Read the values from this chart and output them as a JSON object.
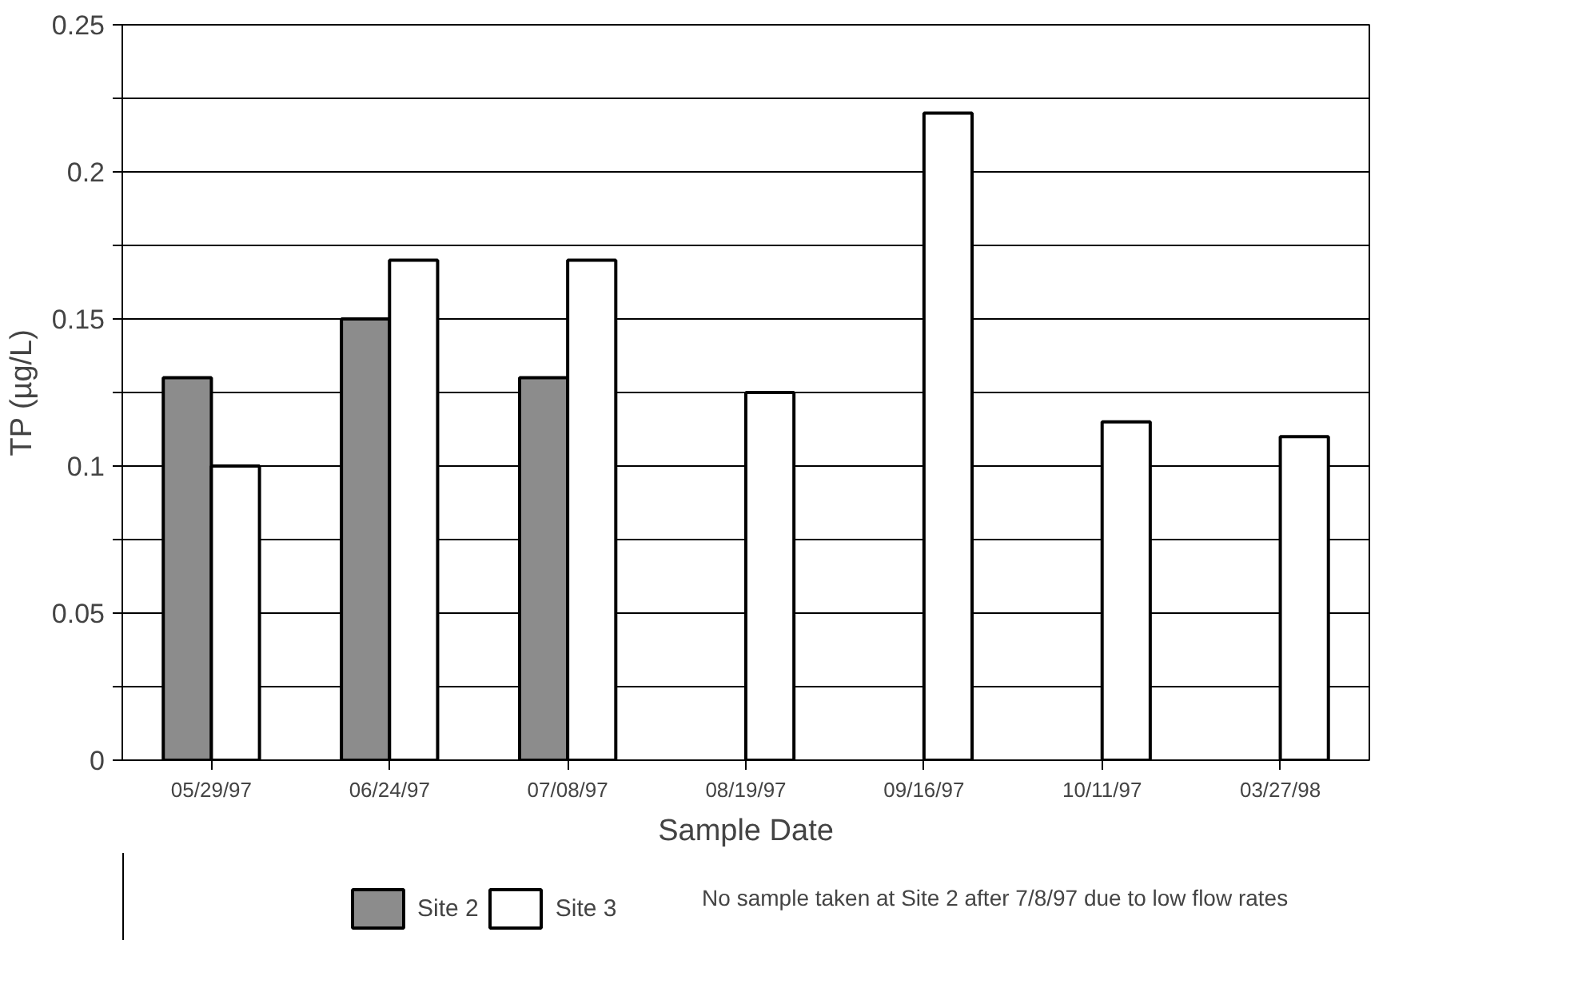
{
  "chart_data": {
    "type": "bar",
    "xlabel": "Sample Date",
    "ylabel": "TP (µg/L)",
    "categories": [
      "05/29/97",
      "06/24/97",
      "07/08/97",
      "08/19/97",
      "09/16/97",
      "10/11/97",
      "03/27/98"
    ],
    "series": [
      {
        "name": "Site 2",
        "color": "#8c8c8c",
        "values": [
          0.13,
          0.15,
          0.13,
          null,
          null,
          null,
          null
        ]
      },
      {
        "name": "Site 3",
        "color": "#ffffff",
        "values": [
          0.1,
          0.17,
          0.17,
          0.125,
          0.22,
          0.115,
          0.11
        ]
      }
    ],
    "ylim": [
      0,
      0.25
    ],
    "yticks": [
      0,
      {
        "value": 0.025,
        "label": null
      },
      0.05,
      {
        "value": 0.075,
        "label": null
      },
      0.1,
      {
        "value": 0.125,
        "label": null
      },
      0.15,
      {
        "value": 0.175,
        "label": null
      },
      0.2,
      {
        "value": 0.225,
        "label": null
      },
      0.25
    ],
    "grid": "y",
    "legend": "bottom",
    "annotations": [
      "No sample taken at Site 2 after 7/8/97 due to low flow rates"
    ]
  }
}
